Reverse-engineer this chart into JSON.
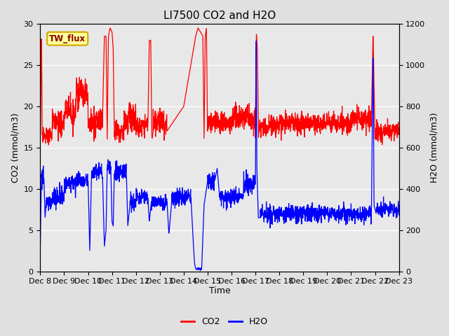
{
  "title": "LI7500 CO2 and H2O",
  "xlabel": "Time",
  "ylabel_left": "CO2 (mmol/m3)",
  "ylabel_right": "H2O (mmol/m3)",
  "ylim_left": [
    0,
    30
  ],
  "ylim_right": [
    0,
    1200
  ],
  "yticks_left": [
    0,
    5,
    10,
    15,
    20,
    25,
    30
  ],
  "yticks_right": [
    0,
    200,
    400,
    600,
    800,
    1000,
    1200
  ],
  "xtick_labels": [
    "Dec 8",
    "Dec 9",
    "Dec 10",
    "Dec 11",
    "Dec 12",
    "Dec 13",
    "Dec 14",
    "Dec 15",
    "Dec 16",
    "Dec 17",
    "Dec 18",
    "Dec 19",
    "Dec 20",
    "Dec 21",
    "Dec 22",
    "Dec 23"
  ],
  "co2_color": "#FF0000",
  "h2o_color": "#0000FF",
  "fig_bg_color": "#E0E0E0",
  "plot_bg_color": "#E8E8E8",
  "grid_color": "#FFFFFF",
  "legend_label_co2": "CO2",
  "legend_label_h2o": "H2O",
  "box_label": "TW_flux",
  "box_facecolor": "#FFFF99",
  "box_edgecolor": "#CCAA00",
  "title_fontsize": 11,
  "label_fontsize": 9,
  "tick_fontsize": 8,
  "legend_fontsize": 9,
  "linewidth_co2": 0.9,
  "linewidth_h2o": 0.9
}
